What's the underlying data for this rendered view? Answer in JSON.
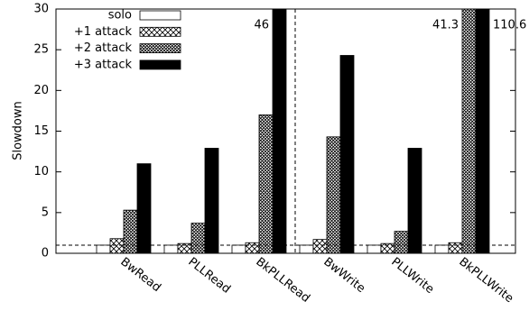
{
  "chart_data": {
    "type": "bar",
    "y_label": "Slowdown",
    "categories": [
      "BwRead",
      "PLLRead",
      "BkPLLRead",
      "BwWrite",
      "PLLWrite",
      "BkPLLWrite"
    ],
    "series": [
      {
        "name": "solo",
        "color": "#ffffff",
        "pattern": "solid",
        "values": [
          1,
          1,
          1,
          1,
          1,
          1
        ]
      },
      {
        "name": "+1 attack",
        "color": "#ffffff",
        "pattern": "cross",
        "values": [
          1.8,
          1.2,
          1.3,
          1.7,
          1.2,
          1.3
        ]
      },
      {
        "name": "+2 attack",
        "color": "#ffffff",
        "pattern": "dense-cross",
        "values": [
          5.3,
          3.7,
          17,
          14.3,
          2.7,
          41.3
        ],
        "value_labels": [
          null,
          null,
          null,
          null,
          null,
          "41.3"
        ]
      },
      {
        "name": "+3 attack",
        "color": "#000000",
        "pattern": "solid",
        "values": [
          11,
          12.9,
          46,
          24.3,
          12.9,
          110.6
        ],
        "value_labels": [
          null,
          null,
          "46",
          null,
          null,
          "110.6"
        ]
      }
    ],
    "ylim": [
      0,
      30
    ],
    "yticks": [
      0,
      5,
      10,
      15,
      20,
      25,
      30
    ],
    "reference_line": 1,
    "legend": "top-left"
  }
}
